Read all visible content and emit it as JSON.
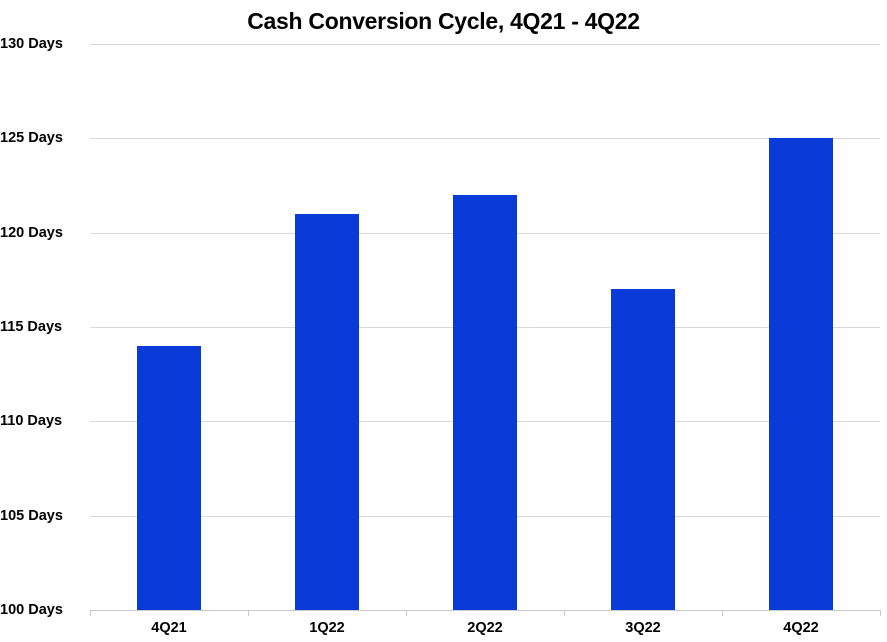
{
  "chart_data": {
    "type": "bar",
    "title": "Cash Conversion Cycle, 4Q21 - 4Q22",
    "xlabel": "",
    "ylabel": "",
    "categories": [
      "4Q21",
      "1Q22",
      "2Q22",
      "3Q22",
      "4Q22"
    ],
    "values": [
      114,
      121,
      122,
      117,
      125
    ],
    "unit": "Days",
    "ylim": [
      100,
      130
    ],
    "yticks": [
      100,
      105,
      110,
      115,
      120,
      125,
      130
    ],
    "ytick_labels": [
      "100 Days",
      "105 Days",
      "110 Days",
      "115 Days",
      "120 Days",
      "125 Days",
      "130 Days"
    ],
    "grid": true,
    "legend": null,
    "bar_color": "#0a3ad8"
  }
}
